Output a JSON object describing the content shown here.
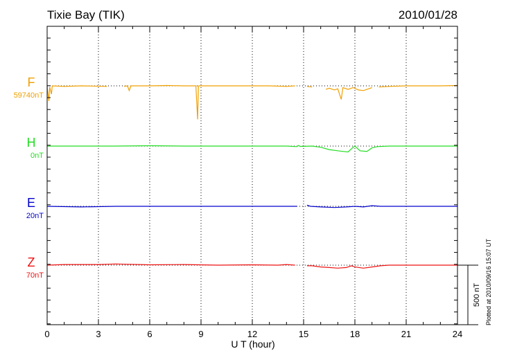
{
  "header": {
    "station": "Tixie Bay (TIK)",
    "date": "2010/01/28"
  },
  "footer": {
    "plotted": "Plotted at 2010/09/16 15:07 UT"
  },
  "chart_data": {
    "type": "line",
    "xlabel": "U T (hour)",
    "xlim": [
      0,
      24
    ],
    "xticks": [
      "0",
      "3",
      "6",
      "9",
      "12",
      "15",
      "18",
      "21",
      "24"
    ],
    "scale_bar": "500 nT",
    "grid": "dotted",
    "series": [
      {
        "name": "F",
        "baseline": "59740nT",
        "color": "#f0a000",
        "points": [
          [
            0.0,
            0
          ],
          [
            0.1,
            -130
          ],
          [
            0.15,
            -10
          ],
          [
            0.25,
            -70
          ],
          [
            0.3,
            0
          ],
          [
            1.0,
            -5
          ],
          [
            2.0,
            0
          ],
          [
            3.5,
            -5
          ],
          [
            3.6,
            null
          ],
          [
            4.5,
            -5
          ],
          [
            4.7,
            0
          ],
          [
            4.8,
            -40
          ],
          [
            4.9,
            0
          ],
          [
            6.0,
            0
          ],
          [
            7.0,
            3
          ],
          [
            8.0,
            0
          ],
          [
            8.7,
            0
          ],
          [
            8.8,
            -285
          ],
          [
            8.85,
            0
          ],
          [
            10.0,
            0
          ],
          [
            12.0,
            0
          ],
          [
            13.0,
            0
          ],
          [
            14.0,
            -5
          ],
          [
            14.5,
            0
          ],
          [
            14.8,
            null
          ],
          [
            15.2,
            -5
          ],
          [
            15.5,
            -10
          ],
          [
            15.8,
            null
          ],
          [
            16.3,
            -30
          ],
          [
            16.5,
            -20
          ],
          [
            16.8,
            -35
          ],
          [
            17.0,
            -25
          ],
          [
            17.2,
            -115
          ],
          [
            17.3,
            -15
          ],
          [
            17.6,
            -30
          ],
          [
            17.9,
            -15
          ],
          [
            18.2,
            -35
          ],
          [
            18.5,
            -40
          ],
          [
            18.8,
            -25
          ],
          [
            19.0,
            -15
          ],
          [
            19.2,
            null
          ],
          [
            19.4,
            -10
          ],
          [
            20.0,
            -5
          ],
          [
            21.0,
            0
          ],
          [
            22.0,
            0
          ],
          [
            23.0,
            0
          ],
          [
            24.0,
            3
          ]
        ]
      },
      {
        "name": "H",
        "baseline": "0nT",
        "color": "#22dd22",
        "points": [
          [
            0.0,
            0
          ],
          [
            2.0,
            0
          ],
          [
            4.0,
            0
          ],
          [
            6.0,
            3
          ],
          [
            8.0,
            0
          ],
          [
            10.0,
            0
          ],
          [
            12.0,
            0
          ],
          [
            14.0,
            0
          ],
          [
            14.6,
            -5
          ],
          [
            14.7,
            5
          ],
          [
            14.8,
            -3
          ],
          [
            15.5,
            0
          ],
          [
            16.0,
            -10
          ],
          [
            16.5,
            -30
          ],
          [
            17.0,
            -40
          ],
          [
            17.3,
            -45
          ],
          [
            17.6,
            -50
          ],
          [
            17.9,
            -10
          ],
          [
            18.0,
            0
          ],
          [
            18.3,
            -40
          ],
          [
            18.7,
            -45
          ],
          [
            19.0,
            -15
          ],
          [
            19.3,
            -5
          ],
          [
            20.0,
            0
          ],
          [
            22.0,
            0
          ],
          [
            24.0,
            0
          ]
        ]
      },
      {
        "name": "E",
        "baseline": "20nT",
        "color": "#0000cc",
        "points": [
          [
            0.0,
            0
          ],
          [
            2.0,
            -5
          ],
          [
            4.0,
            0
          ],
          [
            6.0,
            0
          ],
          [
            8.0,
            0
          ],
          [
            10.0,
            0
          ],
          [
            12.0,
            0
          ],
          [
            14.0,
            0
          ],
          [
            14.6,
            0
          ],
          [
            14.7,
            null
          ],
          [
            15.2,
            10
          ],
          [
            15.4,
            0
          ],
          [
            16.0,
            -5
          ],
          [
            16.8,
            -10
          ],
          [
            17.5,
            -5
          ],
          [
            18.0,
            0
          ],
          [
            18.5,
            -5
          ],
          [
            19.0,
            5
          ],
          [
            19.5,
            0
          ],
          [
            20.0,
            0
          ],
          [
            22.0,
            0
          ],
          [
            24.0,
            0
          ]
        ]
      },
      {
        "name": "Z",
        "baseline": "70nT",
        "color": "#ee1111",
        "points": [
          [
            0.0,
            0
          ],
          [
            1.0,
            5
          ],
          [
            3.0,
            5
          ],
          [
            4.0,
            10
          ],
          [
            6.0,
            3
          ],
          [
            8.0,
            5
          ],
          [
            10.0,
            0
          ],
          [
            12.0,
            3
          ],
          [
            13.5,
            0
          ],
          [
            14.0,
            5
          ],
          [
            14.5,
            0
          ],
          [
            14.7,
            null
          ],
          [
            15.2,
            -5
          ],
          [
            15.5,
            -5
          ],
          [
            16.0,
            -15
          ],
          [
            16.5,
            -20
          ],
          [
            17.0,
            -25
          ],
          [
            17.5,
            -20
          ],
          [
            17.8,
            -5
          ],
          [
            18.0,
            -15
          ],
          [
            18.5,
            -25
          ],
          [
            19.0,
            -15
          ],
          [
            19.5,
            -5
          ],
          [
            20.0,
            0
          ],
          [
            22.0,
            0
          ],
          [
            24.0,
            0
          ]
        ]
      }
    ]
  }
}
